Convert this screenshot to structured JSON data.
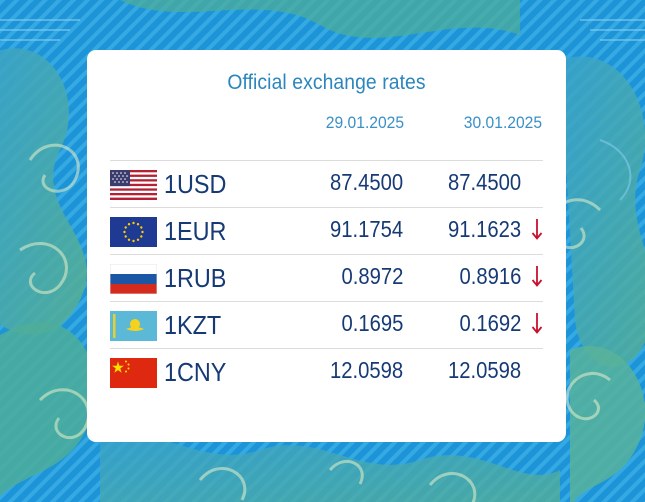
{
  "title": "Official exchange rates",
  "dates": [
    "29.01.2025",
    "30.01.2025"
  ],
  "colors": {
    "text": "#163a75",
    "accent": "#2b86be",
    "down_arrow": "#c8102e",
    "background": "#1b8fd6"
  },
  "rates": [
    {
      "code": "1USD",
      "flag": "us-flag-icon",
      "rate_29": "87.4500",
      "rate_30": "87.4500",
      "trend": "none"
    },
    {
      "code": "1EUR",
      "flag": "eu-flag-icon",
      "rate_29": "91.1754",
      "rate_30": "91.1623",
      "trend": "down"
    },
    {
      "code": "1RUB",
      "flag": "ru-flag-icon",
      "rate_29": "0.8972",
      "rate_30": "0.8916",
      "trend": "down"
    },
    {
      "code": "1KZT",
      "flag": "kz-flag-icon",
      "rate_29": "0.1695",
      "rate_30": "0.1692",
      "trend": "down"
    },
    {
      "code": "1CNY",
      "flag": "cn-flag-icon",
      "rate_29": "12.0598",
      "rate_30": "12.0598",
      "trend": "none"
    }
  ]
}
